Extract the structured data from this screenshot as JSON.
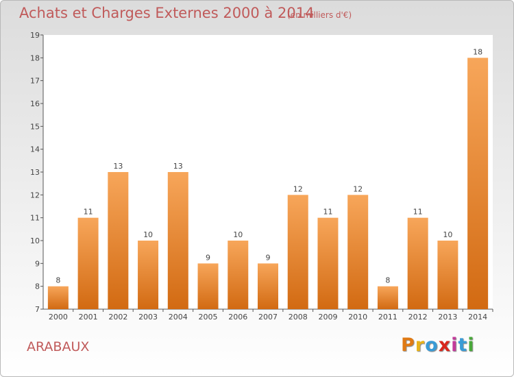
{
  "header": {
    "title": "Achats et Charges Externes 2000 à 2014",
    "subtitle": "(en milliers d'€)"
  },
  "footer": {
    "commune": "ARABAUX",
    "brand": {
      "text": "Proxiti",
      "colors": [
        "#e07a14",
        "#e8b31a",
        "#3a9bd6",
        "#d9261c",
        "#c23a9a",
        "#3a9bd6",
        "#49a83a"
      ]
    }
  },
  "colors": {
    "bar_top": "#f7a65a",
    "bar_bottom": "#d26a12",
    "title": "#c05a5a"
  },
  "chart_data": {
    "type": "bar",
    "categories": [
      "2000",
      "2001",
      "2002",
      "2003",
      "2004",
      "2005",
      "2006",
      "2007",
      "2008",
      "2009",
      "2010",
      "2011",
      "2012",
      "2013",
      "2014"
    ],
    "values": [
      8,
      11,
      13,
      10,
      13,
      9,
      10,
      9,
      12,
      11,
      12,
      8,
      11,
      10,
      18
    ],
    "ylim": [
      7,
      19
    ],
    "yticks": [
      7,
      8,
      9,
      10,
      11,
      12,
      13,
      14,
      15,
      16,
      17,
      18,
      19
    ],
    "grid": false,
    "data_labels": true
  }
}
